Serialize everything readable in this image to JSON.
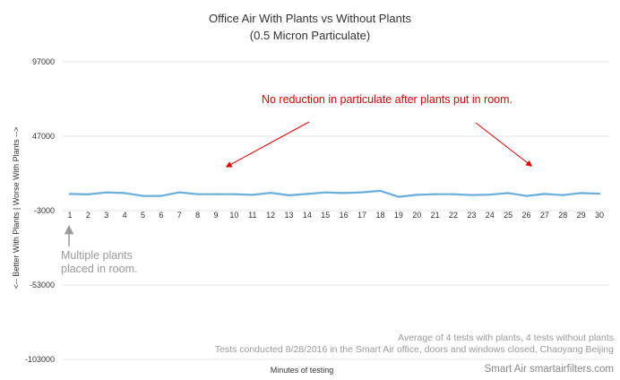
{
  "chart_data": {
    "type": "line",
    "title_line1": "Office Air With Plants vs Without Plants",
    "title_line2": "(0.5 Micron Particulate)",
    "xlabel": "Minutes of testing",
    "ylabel": "<-- Better With Plants | Worse With Plants -->",
    "ylim": [
      -103000,
      97000
    ],
    "y_ticks": [
      "97000",
      "47000",
      "-3000",
      "-53000",
      "-103000"
    ],
    "y_tick_values": [
      97000,
      47000,
      -3000,
      -53000,
      -103000
    ],
    "categories": [
      "1",
      "2",
      "3",
      "4",
      "5",
      "6",
      "7",
      "8",
      "9",
      "10",
      "11",
      "12",
      "13",
      "14",
      "15",
      "16",
      "17",
      "18",
      "19",
      "20",
      "21",
      "22",
      "23",
      "24",
      "25",
      "26",
      "27",
      "28",
      "29",
      "30"
    ],
    "series": [
      {
        "name": "",
        "color": "#6aaedb",
        "values": [
          8200,
          7900,
          9200,
          8800,
          6900,
          6900,
          9300,
          8000,
          8000,
          8000,
          7600,
          8900,
          7300,
          8200,
          9200,
          8800,
          9300,
          10300,
          6300,
          7600,
          8000,
          8000,
          7500,
          7700,
          8800,
          6900,
          8200,
          7400,
          8800,
          8400
        ]
      }
    ],
    "grid": true,
    "annotations": {
      "red_text": "No reduction in particulate after plants put in room.",
      "gray_line1": "Multiple plants",
      "gray_line2": "placed in room."
    },
    "notes": {
      "line1": "Average of 4 tests with plants, 4 tests without plants",
      "line2": "Tests conducted 8/28/2016 in the Smart Air office, doors and windows closed, Chaoyang Beijing"
    },
    "credit": "Smart Air smartairfilters.com"
  },
  "colors": {
    "series": "#6aaedb",
    "annotation_red": "#e00000",
    "annotation_gray": "#9a9a9a",
    "grid": "#e4e4e4"
  }
}
